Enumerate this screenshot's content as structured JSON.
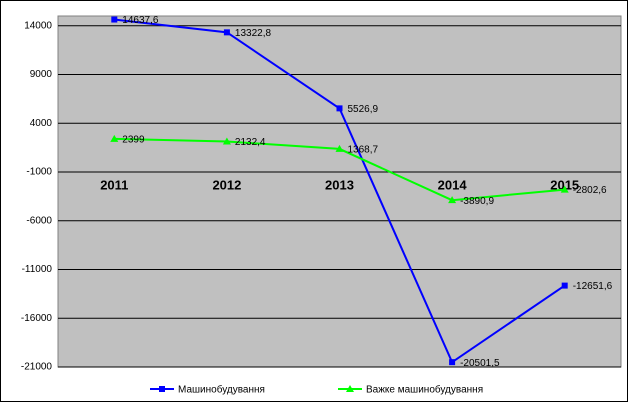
{
  "chart_data": {
    "type": "line",
    "categories": [
      "2011",
      "2012",
      "2013",
      "2014",
      "2015"
    ],
    "series": [
      {
        "name": "Машинобудування",
        "color": "#0000ff",
        "marker": "square",
        "values": [
          14637.6,
          13322.8,
          5526.9,
          -20501.5,
          -12651.6
        ],
        "value_labels": [
          "14637,6",
          "13322,8",
          "5526,9",
          "-20501,5",
          "-12651,6"
        ]
      },
      {
        "name": "Важке машинобудування",
        "color": "#00ff00",
        "marker": "triangle",
        "values": [
          2399,
          2132.4,
          1368.7,
          -3890.9,
          -2802.6
        ],
        "value_labels": [
          "2399",
          "2132,4",
          "1368,7",
          "-3890,9",
          "-2802,6"
        ]
      }
    ],
    "ylim": [
      -21000,
      15000
    ],
    "yticks": [
      -21000,
      -16000,
      -11000,
      -6000,
      -1000,
      4000,
      9000,
      14000
    ],
    "grid": true,
    "legend": "bottom"
  }
}
